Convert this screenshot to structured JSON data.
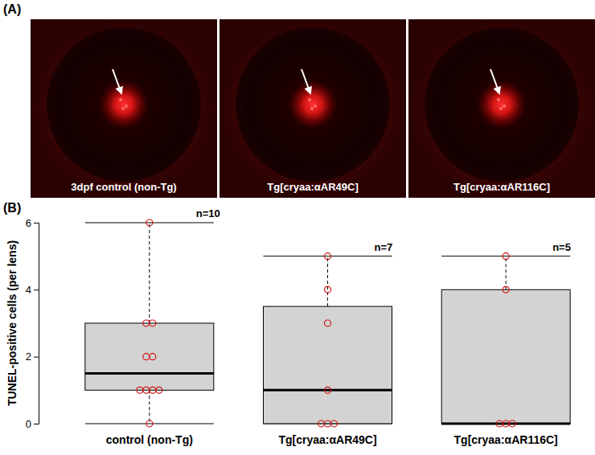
{
  "panel_a": {
    "label": "(A)",
    "images": [
      "3dpf control (non-Tg)",
      "Tg[cryaa:αAR49C]",
      "Tg[cryaa:αAR116C]"
    ]
  },
  "chart_data": {
    "type": "box",
    "panel_label": "(B)",
    "y_label": "TUNEL-positive cells (per lens)",
    "categories": [
      "control (non-Tg)",
      "Tg[cryaa:αAR49C]",
      "Tg[cryaa:αAR116C]"
    ],
    "n_labels": [
      "n=10",
      "n=7",
      "n=5"
    ],
    "values": [
      [
        0,
        1,
        1,
        1,
        1,
        2,
        2,
        3,
        3,
        6
      ],
      [
        0,
        0,
        0,
        1,
        3,
        4,
        5
      ],
      [
        0,
        0,
        0,
        4,
        5
      ]
    ],
    "boxes": [
      {
        "whisker_low": 0,
        "q1": 1,
        "median": 1.5,
        "q3": 3,
        "whisker_high": 6
      },
      {
        "whisker_low": 0,
        "q1": 0,
        "median": 1,
        "q3": 3.5,
        "whisker_high": 5
      },
      {
        "whisker_low": 0,
        "q1": 0,
        "median": 0,
        "q3": 4,
        "whisker_high": 5
      }
    ],
    "color": "#d3d3d3",
    "ylim": [
      0,
      6
    ],
    "yticks": [
      0,
      2,
      4,
      6
    ],
    "grid": false
  }
}
